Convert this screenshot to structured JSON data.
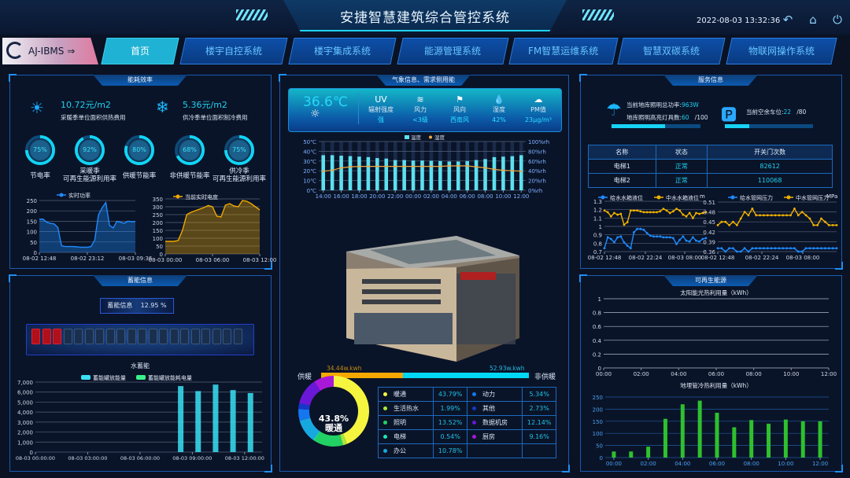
{
  "header": {
    "title": "安捷智慧建筑综合管控系统",
    "datetime": "2022-08-03 13:32:36",
    "icons": [
      "back-icon",
      "home-icon",
      "power-icon"
    ]
  },
  "nav": {
    "logo": "AJ-IBMS",
    "tabs": [
      "首页",
      "楼宇自控系统",
      "楼宇集成系统",
      "能源管理系统",
      "FM智慧运维系统",
      "智慧双碳系统",
      "物联网操作系统"
    ],
    "active": 0
  },
  "energy": {
    "title": "能耗效率",
    "heating_cost": "10.72元/m2",
    "heating_label": "采暖季单位面积供热费用",
    "cooling_cost": "5.36元/m2",
    "cooling_label": "供冷季单位面积制冷费用",
    "rings": [
      {
        "pct": "75%",
        "value": 75,
        "label": "节电率"
      },
      {
        "pct": "92%",
        "value": 92,
        "label": "采暖季\n可再生能源利用率"
      },
      {
        "pct": "80%",
        "value": 80,
        "label": "供暖节能率"
      },
      {
        "pct": "68%",
        "value": 68,
        "label": "非供暖节能率"
      },
      {
        "pct": "75%",
        "value": 75,
        "label": "供冷季\n可再生能源利用率"
      }
    ]
  },
  "storage": {
    "title": "蓄能信息",
    "box_label": "蓄能信息",
    "box_value": "12.95 %",
    "level_pct": 12.95,
    "cells_total": 20,
    "cells_on": 3,
    "chart_title": "水蓄能"
  },
  "weather": {
    "title": "气象信息、需求侧用能",
    "temperature": "36.6℃",
    "items": [
      {
        "icon": "uv-icon",
        "glyph": "UV",
        "label": "辐射强度",
        "value": "强"
      },
      {
        "icon": "wind-icon",
        "glyph": "≋",
        "label": "风力",
        "value": "<3级"
      },
      {
        "icon": "flag-icon",
        "glyph": "⚑",
        "label": "风向",
        "value": "西南风"
      },
      {
        "icon": "droplet-icon",
        "glyph": "💧",
        "label": "湿度",
        "value": "42%"
      },
      {
        "icon": "cloud-icon",
        "glyph": "☁",
        "label": "PM值",
        "value": "23μg/m³"
      }
    ]
  },
  "supply": {
    "left_label": "供暖",
    "right_label": "非供暖",
    "left_value": "34.44w.kwh",
    "right_value": "52.93w.kwh",
    "left": 34.44,
    "right": 52.93,
    "left_color": "#f5a800",
    "right_color": "#00d8f5"
  },
  "donut": {
    "center_value": "43.8%",
    "center_label": "暖通"
  },
  "service": {
    "title": "服务信息",
    "lamp_power_label": "当前地库照明总功率:",
    "lamp_power": "963W",
    "lamp_count_label": "地库照明高亮灯具数:",
    "lamp_count": "60",
    "lamp_total": "/100",
    "lamp_value": 60,
    "lamp_max": 100,
    "parking_label": "当前空余车位:",
    "parking": "22",
    "parking_total": "/80",
    "parking_value": 22,
    "parking_max": 80,
    "table": {
      "headers": [
        "名称",
        "状态",
        "开关门次数"
      ],
      "rows": [
        [
          "电梯1",
          "正常",
          "82612"
        ],
        [
          "电梯2",
          "正常",
          "110068"
        ]
      ]
    }
  },
  "renewable": {
    "title": "可再生能源"
  },
  "chart_data": [
    {
      "id": "power",
      "type": "area",
      "series": [
        {
          "name": "实时功率",
          "color": "#1e8bff",
          "values": [
            160,
            160,
            145,
            140,
            137,
            120,
            32,
            28,
            28,
            28,
            27,
            25,
            25,
            25,
            28,
            60,
            180,
            215,
            240,
            130,
            118,
            150,
            145,
            140,
            150,
            148,
            148
          ]
        }
      ],
      "x_ticks": [
        "08-02 12:48",
        "08-02 23:12",
        "08-03 09:36"
      ],
      "ylim": [
        0,
        250
      ],
      "y_ticks": [
        0,
        50,
        100,
        150,
        200,
        250
      ],
      "legend": "top"
    },
    {
      "id": "kwh",
      "type": "area",
      "series": [
        {
          "name": "当前实时电度",
          "color": "#f0a800",
          "values": [
            80,
            80,
            80,
            85,
            150,
            250,
            265,
            275,
            285,
            295,
            308,
            300,
            240,
            235,
            310,
            320,
            305,
            300,
            340,
            335,
            320,
            300,
            280
          ]
        }
      ],
      "x_ticks": [
        "08-03 00:00",
        "08-03 06:00",
        "08-03 12:00"
      ],
      "ylim": [
        0,
        350
      ],
      "y_ticks": [
        0,
        50,
        100,
        150,
        200,
        250,
        300,
        350
      ],
      "legend": "top"
    },
    {
      "id": "weather",
      "type": "bar+line",
      "categories": [
        "14:00",
        "15:00",
        "16:00",
        "17:00",
        "18:00",
        "19:00",
        "20:00",
        "21:00",
        "22:00",
        "23:00",
        "00:00",
        "01:00",
        "02:00",
        "03:00",
        "04:00",
        "05:00",
        "06:00",
        "07:00",
        "08:00",
        "09:00",
        "10:00",
        "11:00",
        "12:00"
      ],
      "x_ticks": [
        "14:00",
        "16:00",
        "18:00",
        "20:00",
        "22:00",
        "00:00",
        "02:00",
        "04:00",
        "06:00",
        "08:00",
        "10:00",
        "12:00"
      ],
      "series": [
        {
          "name": "温度",
          "type": "bar",
          "axis": "left",
          "color": "#5de0f0",
          "values": [
            36,
            36,
            35.5,
            35,
            34.5,
            34,
            33,
            32.5,
            31,
            31,
            30.5,
            30.5,
            30.3,
            30,
            29.5,
            29.5,
            30,
            31,
            32,
            34,
            34.5,
            35,
            36
          ]
        },
        {
          "name": "湿度",
          "type": "line",
          "axis": "right",
          "color": "#f0a840",
          "values": [
            39,
            41,
            46,
            48,
            49,
            49,
            49,
            49,
            49,
            49,
            49,
            49,
            49,
            49,
            50,
            50,
            50,
            48,
            46,
            43,
            41,
            40,
            39
          ]
        }
      ],
      "y_left": {
        "ylim": [
          0,
          50
        ],
        "ticks": [
          "0℃",
          "10℃",
          "20℃",
          "30℃",
          "40℃",
          "50℃"
        ]
      },
      "y_right": {
        "ylim": [
          0,
          100
        ],
        "ticks": [
          "0%rh",
          "20%rh",
          "40%rh",
          "60%rh",
          "80%rh",
          "100%rh"
        ]
      },
      "legend": "top"
    },
    {
      "id": "water",
      "type": "line",
      "unit": "m",
      "series": [
        {
          "name": "给水水箱液位",
          "color": "#1e8bff",
          "values": [
            0.74,
            0.87,
            0.85,
            0.81,
            0.87,
            0.88,
            0.81,
            0.77,
            0.74,
            0.93,
            0.97,
            0.97,
            0.96,
            0.92,
            0.89,
            0.88,
            0.88,
            0.88,
            0.87,
            0.87,
            0.87,
            0.86,
            0.79,
            0.84,
            0.88,
            0.83,
            0.82,
            0.87,
            0.83,
            0.82,
            0.85,
            0.86
          ]
        },
        {
          "name": "中水水箱液位",
          "color": "#f0b000",
          "values": [
            1.19,
            1.17,
            1.12,
            1.16,
            1.14,
            1.15,
            1.02,
            1.05,
            1.19,
            1.19,
            1.19,
            1.18,
            1.17,
            1.17,
            1.17,
            1.17,
            1.17,
            1.18,
            1.21,
            1.19,
            1.16,
            1.18,
            1.21,
            1.19,
            1.14,
            1.12,
            1.16,
            1.1,
            1.16,
            1.15,
            1.16,
            1.17
          ]
        }
      ],
      "x_ticks": [
        "08-02 12:48",
        "08-02 22:24",
        "08-03 08:00"
      ],
      "ylim": [
        0.7,
        1.3
      ],
      "y_ticks": [
        "0.7",
        "0.8",
        "0.9",
        "1",
        "1.1",
        "1.2",
        "1.3"
      ],
      "legend": "top"
    },
    {
      "id": "pressure",
      "type": "line",
      "unit": "MPa",
      "series": [
        {
          "name": "给水管网压力",
          "color": "#1e8bff",
          "values": [
            0.37,
            0.37,
            0.36,
            0.37,
            0.37,
            0.36,
            0.36,
            0.37,
            0.36,
            0.37,
            0.37,
            0.37,
            0.37,
            0.37,
            0.37,
            0.37,
            0.37,
            0.37,
            0.37,
            0.37,
            0.37,
            0.36,
            0.36,
            0.37,
            0.37,
            0.37,
            0.37,
            0.37,
            0.37,
            0.37,
            0.37,
            0.37
          ]
        },
        {
          "name": "中水管网压力",
          "color": "#f0b000",
          "values": [
            0.44,
            0.45,
            0.45,
            0.44,
            0.45,
            0.44,
            0.46,
            0.48,
            0.47,
            0.49,
            0.47,
            0.47,
            0.47,
            0.47,
            0.47,
            0.47,
            0.47,
            0.47,
            0.47,
            0.47,
            0.49,
            0.47,
            0.48,
            0.47,
            0.46,
            0.44,
            0.44,
            0.46,
            0.45,
            0.44,
            0.44,
            0.44
          ]
        }
      ],
      "x_ticks": [
        "08-02 12:48",
        "08-02 22:24",
        "08-03 08:00"
      ],
      "ylim": [
        0.36,
        0.51
      ],
      "y_ticks": [
        "0.36",
        "0.39",
        "0.42",
        "0.45",
        "0.48",
        "0.51"
      ],
      "legend": "top"
    },
    {
      "id": "storage",
      "type": "bar",
      "title": "水蓄能",
      "series": [
        {
          "name": "蓄能罐放能量",
          "color": "#3ae0f5",
          "points": [
            [
              "08:20",
              6600
            ],
            [
              "09:20",
              6100
            ],
            [
              "10:20",
              6750
            ],
            [
              "11:20",
              6200
            ],
            [
              "12:20",
              5900
            ]
          ]
        },
        {
          "name": "蓄能罐放能耗电量",
          "color": "#3af08a",
          "points": []
        }
      ],
      "x_ticks": [
        "08-03 00:00:00",
        "08-03 03:00:00",
        "08-03 06:00:00",
        "08-03 09:00:00",
        "08-03 12:00:00"
      ],
      "ylim": [
        0,
        7000
      ],
      "y_ticks": [
        "0",
        "1,000",
        "2,000",
        "3,000",
        "4,000",
        "5,000",
        "6,000",
        "7,000"
      ],
      "legend": "top"
    },
    {
      "id": "solar",
      "type": "line",
      "title": "太阳能光热利用量（kWh）",
      "series": [],
      "x_ticks": [
        "00:00",
        "02:00",
        "04:00",
        "06:00",
        "08:00",
        "10:00",
        "12:00"
      ],
      "ylim": [
        0,
        1
      ],
      "y_ticks": [
        "0",
        "0.2",
        "0.4",
        "0.6",
        "0.8",
        "1"
      ]
    },
    {
      "id": "geo",
      "type": "bar",
      "title": "地埋管冷热利用量（kWh）",
      "categories": [
        "00:00",
        "01:00",
        "02:00",
        "03:00",
        "04:00",
        "05:00",
        "06:00",
        "07:00",
        "08:00",
        "09:00",
        "10:00",
        "11:00",
        "12:00"
      ],
      "series": [
        {
          "color": "#2ec02e",
          "values": [
            25,
            25,
            45,
            160,
            220,
            235,
            185,
            125,
            155,
            140,
            157,
            150,
            150
          ]
        }
      ],
      "x_ticks": [
        "00:00",
        "02:00",
        "04:00",
        "06:00",
        "08:00",
        "10:00",
        "12:00"
      ],
      "ylim": [
        0,
        250
      ],
      "y_ticks": [
        "0",
        "50",
        "100",
        "150",
        "200",
        "250"
      ]
    },
    {
      "id": "usage",
      "type": "pie",
      "center": "43.8%",
      "slices": [
        {
          "name": "暖通",
          "value": 43.79,
          "label": "43.79%",
          "color": "#f5f540"
        },
        {
          "name": "生活热水",
          "value": 1.99,
          "label": "1.99%",
          "color": "#a8e83a"
        },
        {
          "name": "照明",
          "value": 13.52,
          "label": "13.52%",
          "color": "#22d163"
        },
        {
          "name": "电梯",
          "value": 0.54,
          "label": "0.54%",
          "color": "#1ee8b6"
        },
        {
          "name": "办公",
          "value": 10.78,
          "label": "10.78%",
          "color": "#18a8e0"
        },
        {
          "name": "动力",
          "value": 5.34,
          "label": "5.34%",
          "color": "#1676f0"
        },
        {
          "name": "其他",
          "value": 2.73,
          "label": "2.73%",
          "color": "#1438c8"
        },
        {
          "name": "数据机房",
          "value": 12.14,
          "label": "12.14%",
          "color": "#6a18d8"
        },
        {
          "name": "厨房",
          "value": 9.16,
          "label": "9.16%",
          "color": "#a818d8"
        }
      ]
    }
  ]
}
